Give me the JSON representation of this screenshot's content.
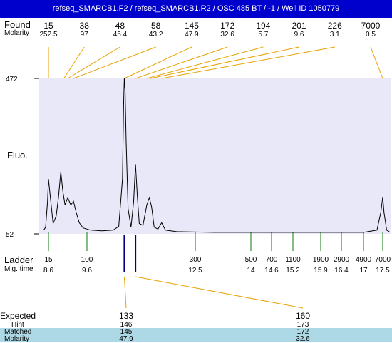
{
  "title": "refseq_SMARCB1.F2 / refseq_SMARCB1.R2 / OSC 485 BT / -1 / Well ID 1050779",
  "labels": {
    "found": "Found",
    "molarity": "Molarity",
    "fluo": "Fluo.",
    "ladder": "Ladder",
    "mig_time": "Mig. time",
    "expected": "Expected",
    "hint": "Hint",
    "matched": "Matched",
    "molarity2": "Molarity"
  },
  "colors": {
    "title_bg": "#0000cc",
    "plot_bg": "#e8e8f8",
    "band": "#c8c8d8",
    "leader": "#e8a200",
    "ladder_tick": "#0a7a0a",
    "expected_tick": "#000080",
    "matched_row": "#add8e6"
  },
  "chart_data": {
    "type": "line",
    "ylim": [
      52,
      472
    ],
    "y_ticks": [
      "472",
      "52"
    ],
    "found_peaks": [
      {
        "size": "15",
        "molarity": "252.5",
        "time": 8.6
      },
      {
        "size": "38",
        "molarity": "97",
        "time": 9.0
      },
      {
        "size": "48",
        "molarity": "45.4",
        "time": 9.1
      },
      {
        "size": "58",
        "molarity": "43.2",
        "time": 9.25
      },
      {
        "size": "145",
        "molarity": "47.9",
        "time": 10.6
      },
      {
        "size": "172",
        "molarity": "32.6",
        "time": 10.9
      },
      {
        "size": "194",
        "molarity": "5.7",
        "time": 11.2
      },
      {
        "size": "201",
        "molarity": "9.6",
        "time": 11.3
      },
      {
        "size": "226",
        "molarity": "3.1",
        "time": 11.6
      },
      {
        "size": "7000",
        "molarity": "0.5",
        "time": 17.5
      }
    ],
    "ladder": [
      {
        "size": "15",
        "time": "8.6"
      },
      {
        "size": "100",
        "time": "9.6"
      },
      {
        "size": "300",
        "time": "12.5"
      },
      {
        "size": "500",
        "time": "14"
      },
      {
        "size": "700",
        "time": "14.6"
      },
      {
        "size": "1100",
        "time": "15.2"
      },
      {
        "size": "1900",
        "time": "15.9"
      },
      {
        "size": "2900",
        "time": "16.4"
      },
      {
        "size": "4900",
        "time": "17"
      },
      {
        "size": "7000",
        "time": "17.5"
      }
    ],
    "expected": [
      {
        "expected": "133",
        "hint": "146",
        "matched": "145",
        "molarity": "47.9",
        "time": 10.6
      },
      {
        "expected": "160",
        "hint": "173",
        "matched": "172",
        "molarity": "32.6",
        "time": 10.9
      }
    ],
    "trace": [
      [
        8.35,
        62
      ],
      [
        8.45,
        70
      ],
      [
        8.55,
        140
      ],
      [
        8.6,
        200
      ],
      [
        8.65,
        150
      ],
      [
        8.72,
        80
      ],
      [
        8.8,
        100
      ],
      [
        8.86,
        150
      ],
      [
        8.92,
        220
      ],
      [
        8.97,
        170
      ],
      [
        9.03,
        130
      ],
      [
        9.1,
        150
      ],
      [
        9.18,
        130
      ],
      [
        9.25,
        140
      ],
      [
        9.32,
        110
      ],
      [
        9.4,
        82
      ],
      [
        9.5,
        68
      ],
      [
        9.7,
        62
      ],
      [
        10.0,
        60
      ],
      [
        10.3,
        62
      ],
      [
        10.45,
        72
      ],
      [
        10.55,
        200
      ],
      [
        10.58,
        400
      ],
      [
        10.6,
        472
      ],
      [
        10.62,
        440
      ],
      [
        10.65,
        300
      ],
      [
        10.7,
        120
      ],
      [
        10.78,
        70
      ],
      [
        10.85,
        140
      ],
      [
        10.9,
        240
      ],
      [
        10.95,
        150
      ],
      [
        11.0,
        80
      ],
      [
        11.1,
        75
      ],
      [
        11.2,
        130
      ],
      [
        11.27,
        150
      ],
      [
        11.33,
        125
      ],
      [
        11.4,
        70
      ],
      [
        11.5,
        65
      ],
      [
        11.6,
        82
      ],
      [
        11.7,
        62
      ],
      [
        12.0,
        58
      ],
      [
        13.0,
        56
      ],
      [
        14.0,
        56
      ],
      [
        15.0,
        56
      ],
      [
        16.0,
        56
      ],
      [
        17.0,
        56
      ],
      [
        17.35,
        62
      ],
      [
        17.45,
        110
      ],
      [
        17.5,
        152
      ],
      [
        17.55,
        110
      ],
      [
        17.65,
        62
      ],
      [
        17.75,
        58
      ]
    ]
  }
}
